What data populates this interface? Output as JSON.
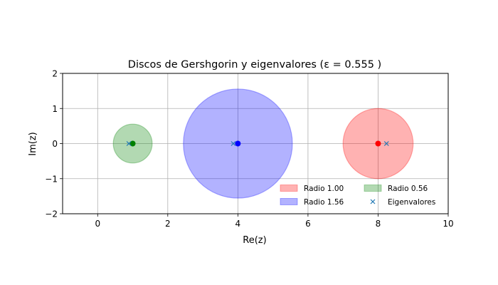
{
  "chart_data": {
    "type": "scatter",
    "title": "Discos de Gershgorin y eigenvalores (ε = 0.555 )",
    "xlabel": "Re(z)",
    "ylabel": "Im(z)",
    "xlim": [
      -1,
      10
    ],
    "ylim": [
      -2,
      2
    ],
    "xticks": [
      0,
      2,
      4,
      6,
      8,
      10
    ],
    "xtick_labels": [
      "0",
      "2",
      "4",
      "6",
      "8",
      "10"
    ],
    "yticks": [
      -2,
      -1,
      0,
      1,
      2
    ],
    "ytick_labels": [
      "−2",
      "−1",
      "0",
      "1",
      "2"
    ],
    "grid": true,
    "aspect": "equal",
    "legend_position": "lower-right",
    "discs": [
      {
        "name": "Radio 1.00",
        "center": [
          8,
          0
        ],
        "radius": 1.0,
        "color": "#ff0000"
      },
      {
        "name": "Radio 1.56",
        "center": [
          4,
          0
        ],
        "radius": 1.555,
        "color": "#0000ff"
      },
      {
        "name": "Radio 0.56",
        "center": [
          1,
          0
        ],
        "radius": 0.555,
        "color": "#008000"
      }
    ],
    "eigenvalues": {
      "name": "Eigenvalores",
      "color": "#1f77b4",
      "marker": "x",
      "points": [
        [
          0.89,
          0
        ],
        [
          3.87,
          0
        ],
        [
          8.24,
          0
        ]
      ]
    }
  }
}
